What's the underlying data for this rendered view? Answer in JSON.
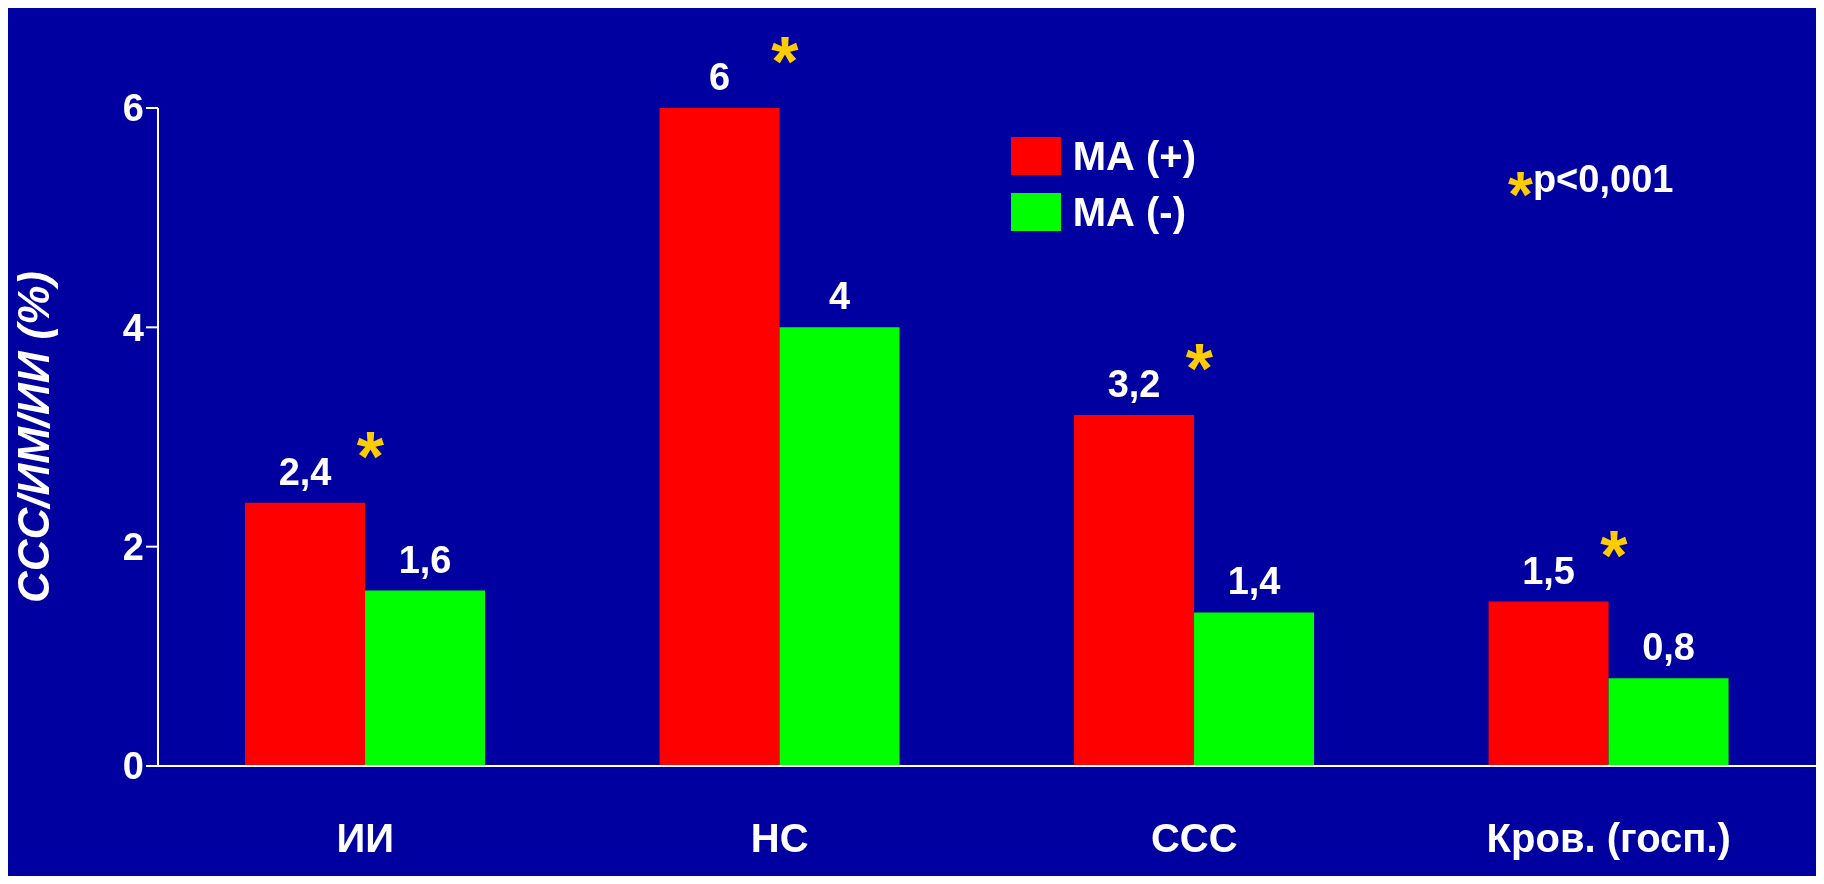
{
  "chart_data": {
    "type": "bar",
    "ylabel": "ССС/ИМ/ИИ (%)",
    "categories": [
      "ИИ",
      "НС",
      "ССС",
      "Кров. (госп.)"
    ],
    "series": [
      {
        "name": "МА (+)",
        "color": "#ff0000",
        "values": [
          2.4,
          6,
          3.2,
          1.5
        ],
        "value_labels": [
          "2,4",
          "6",
          "3,2",
          "1,5"
        ]
      },
      {
        "name": "МА (-)",
        "color": "#00ff00",
        "values": [
          1.6,
          4,
          1.4,
          0.8
        ],
        "value_labels": [
          "1,6",
          "4",
          "1,4",
          "0,8"
        ]
      }
    ],
    "ylim": [
      0,
      6
    ],
    "yticks": [
      0,
      2,
      4,
      6
    ],
    "grid": false,
    "legend": "top right",
    "annotations": [
      {
        "text": "*",
        "x": "ИИ",
        "y": 2.4
      },
      {
        "text": "*",
        "x": "НС",
        "y": 6
      },
      {
        "text": "*",
        "x": "ССС",
        "y": 3.2
      },
      {
        "text": "*",
        "x": "Кров. (госп.)",
        "y": 1.5
      },
      "*p<0,001"
    ]
  }
}
